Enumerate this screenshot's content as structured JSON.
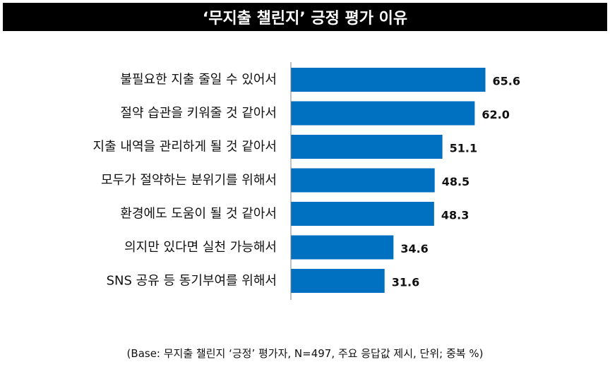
{
  "chart_data": {
    "type": "bar",
    "orientation": "horizontal",
    "title": "‘무지출 챌린지’ 긍정 평가 이유",
    "categories": [
      "불필요한 지출 줄일 수 있어서",
      "절약 습관을 키워줄 것 같아서",
      "지출 내역을 관리하게 될 것 같아서",
      "모두가 절약하는 분위기를 위해서",
      "환경에도 도움이 될 것 같아서",
      "의지만 있다면 실천 가능해서",
      "SNS 공유 등 동기부여를 위해서"
    ],
    "values": [
      65.6,
      62.0,
      51.1,
      48.5,
      48.3,
      34.6,
      31.6
    ],
    "value_labels": [
      "65.6",
      "62.0",
      "51.1",
      "48.5",
      "48.3",
      "34.6",
      "31.6"
    ],
    "bar_color": "#0070C0",
    "xlim": [
      0,
      70
    ],
    "grid": false,
    "legend": "none"
  },
  "footnote": "(Base: 무지출 챌린지 ‘긍정’ 평가자, N=497, 주요 응답값 제시, 단위; 중복 %)"
}
